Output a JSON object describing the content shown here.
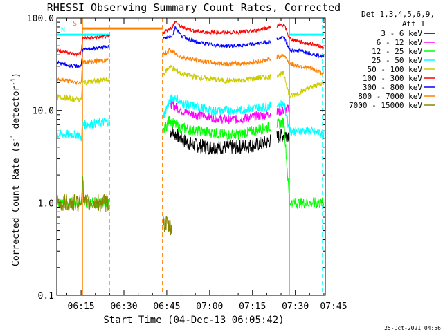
{
  "chart_data": {
    "type": "line",
    "title": "RHESSI Observing Summary Count Rates, Corrected",
    "xlabel": "Start Time (04-Dec-13 06:05:42)",
    "ylabel_main": "Corrected Count Rate (s",
    "ylabel_sup": "-1",
    "ylabel_tail": " detector",
    "ylabel_close": ")",
    "yscale": "log",
    "ylim": [
      0.1,
      100
    ],
    "xlim_minutes": [
      6.5,
      100.5
    ],
    "yticks": [
      {
        "v": 0.1,
        "label": "0.1"
      },
      {
        "v": 1,
        "label": "1.0"
      },
      {
        "v": 10,
        "label": "10.0"
      },
      {
        "v": 100,
        "label": "100.0"
      }
    ],
    "xticks": [
      {
        "m": 15,
        "label": "06:15"
      },
      {
        "m": 30,
        "label": "06:30"
      },
      {
        "m": 45,
        "label": "06:45"
      },
      {
        "m": 60,
        "label": "07:00"
      },
      {
        "m": 75,
        "label": "07:15"
      },
      {
        "m": 90,
        "label": "07:30"
      },
      {
        "m": 105,
        "label": "07:45"
      }
    ],
    "legend_header": [
      "Det 1,3,4,5,6,9,",
      "Att 1"
    ],
    "legend_position": "right",
    "footer_date": "25-Oct-2021 04:56",
    "gaps_minutes": [
      [
        25,
        43.5
      ],
      [
        81.5,
        83.5
      ]
    ],
    "flags": [
      {
        "label": "S",
        "color": "#ff7f00",
        "start": 15.5,
        "end": 43.5,
        "level": 77
      },
      {
        "label": "N",
        "color": "#00ffff",
        "start": 6.5,
        "end": 25,
        "level": 66
      },
      {
        "label": "",
        "color": "#00ffff",
        "start": 88,
        "end": 100,
        "level": 66
      }
    ],
    "vlines": [
      {
        "m": 15.5,
        "color": "#ff7f00",
        "style": "solid"
      },
      {
        "m": 43.5,
        "color": "#ff7f00",
        "style": "dash"
      },
      {
        "m": 25,
        "color": "#00ffff",
        "style": "dash"
      },
      {
        "m": 88,
        "color": "#00ffff",
        "style": "solid"
      },
      {
        "m": 99.5,
        "color": "#00ffff",
        "style": "dash"
      }
    ],
    "series": [
      {
        "name": "3 - 6 keV",
        "color": "#000000",
        "noise": 0.08,
        "points": [
          [
            6.5,
            null
          ],
          [
            46,
            6
          ],
          [
            48,
            5.5
          ],
          [
            50,
            5
          ],
          [
            52,
            4.5
          ],
          [
            55,
            4.2
          ],
          [
            60,
            4
          ],
          [
            65,
            4
          ],
          [
            70,
            4
          ],
          [
            75,
            4.2
          ],
          [
            80,
            4.5
          ],
          [
            86,
            5.5
          ],
          [
            88,
            5.5
          ]
        ]
      },
      {
        "name": "6 - 12 keV",
        "color": "#ff00ff",
        "noise": 0.05,
        "points": [
          [
            46,
            12
          ],
          [
            48,
            11
          ],
          [
            50,
            10
          ],
          [
            55,
            9
          ],
          [
            60,
            8.5
          ],
          [
            65,
            8
          ],
          [
            70,
            8
          ],
          [
            75,
            8.5
          ],
          [
            80,
            9
          ],
          [
            86,
            10
          ],
          [
            88,
            10.5
          ]
        ]
      },
      {
        "name": "12 - 25 keV",
        "color": "#00ff00",
        "noise": 0.06,
        "points": [
          [
            6.5,
            1
          ],
          [
            15,
            1
          ],
          [
            15.5,
            2
          ],
          [
            16,
            1
          ],
          [
            25,
            1
          ],
          [
            44,
            6
          ],
          [
            46,
            8
          ],
          [
            48,
            7
          ],
          [
            50,
            6.5
          ],
          [
            55,
            6
          ],
          [
            60,
            5.8
          ],
          [
            65,
            5.5
          ],
          [
            70,
            5.5
          ],
          [
            75,
            6
          ],
          [
            80,
            6.5
          ],
          [
            86,
            7.5
          ],
          [
            88,
            1
          ],
          [
            90,
            1
          ],
          [
            95,
            1
          ],
          [
            100,
            1
          ]
        ]
      },
      {
        "name": "25 - 50 keV",
        "color": "#00ffff",
        "noise": 0.05,
        "points": [
          [
            6.5,
            5.5
          ],
          [
            14,
            5.5
          ],
          [
            15,
            5
          ],
          [
            15.5,
            7
          ],
          [
            44,
            9
          ],
          [
            46,
            13
          ],
          [
            48,
            14
          ],
          [
            50,
            12
          ],
          [
            55,
            11
          ],
          [
            60,
            10
          ],
          [
            65,
            10
          ],
          [
            70,
            10
          ],
          [
            75,
            10.5
          ],
          [
            80,
            11
          ],
          [
            86,
            12
          ],
          [
            88,
            6
          ],
          [
            95,
            6
          ],
          [
            100,
            5.5
          ]
        ]
      },
      {
        "name": "50 - 100 keV",
        "color": "#cccc00",
        "noise": 0.03,
        "points": [
          [
            6.5,
            14
          ],
          [
            15,
            13
          ],
          [
            15.5,
            20
          ],
          [
            44,
            25
          ],
          [
            46,
            30
          ],
          [
            50,
            25
          ],
          [
            55,
            23
          ],
          [
            60,
            22
          ],
          [
            65,
            21
          ],
          [
            70,
            21
          ],
          [
            75,
            22
          ],
          [
            80,
            23
          ],
          [
            86,
            25
          ],
          [
            88,
            14
          ],
          [
            92,
            16
          ],
          [
            96,
            18
          ],
          [
            100,
            20
          ]
        ]
      },
      {
        "name": "100 - 300 keV",
        "color": "#ff0000",
        "noise": 0.02,
        "points": [
          [
            6.5,
            45
          ],
          [
            10,
            43
          ],
          [
            13,
            40
          ],
          [
            15,
            42
          ],
          [
            15.5,
            60
          ],
          [
            44,
            70
          ],
          [
            47,
            80
          ],
          [
            48,
            92
          ],
          [
            50,
            80
          ],
          [
            55,
            72
          ],
          [
            60,
            70
          ],
          [
            65,
            70
          ],
          [
            70,
            70
          ],
          [
            75,
            72
          ],
          [
            80,
            78
          ],
          [
            86,
            85
          ],
          [
            88,
            60
          ],
          [
            92,
            55
          ],
          [
            96,
            52
          ],
          [
            100,
            48
          ]
        ]
      },
      {
        "name": "300 - 800 keV",
        "color": "#0000ff",
        "noise": 0.02,
        "points": [
          [
            6.5,
            33
          ],
          [
            10,
            31
          ],
          [
            13,
            30
          ],
          [
            15,
            30
          ],
          [
            15.5,
            45
          ],
          [
            44,
            60
          ],
          [
            47,
            65
          ],
          [
            48,
            80
          ],
          [
            50,
            65
          ],
          [
            55,
            55
          ],
          [
            60,
            52
          ],
          [
            65,
            50
          ],
          [
            70,
            50
          ],
          [
            75,
            52
          ],
          [
            80,
            55
          ],
          [
            86,
            62
          ],
          [
            88,
            45
          ],
          [
            92,
            44
          ],
          [
            96,
            41
          ],
          [
            100,
            38
          ]
        ]
      },
      {
        "name": "800 - 7000 keV",
        "color": "#ff7f00",
        "noise": 0.025,
        "points": [
          [
            6.5,
            22
          ],
          [
            10,
            21
          ],
          [
            13,
            20
          ],
          [
            15,
            20
          ],
          [
            15.5,
            33
          ],
          [
            44,
            40
          ],
          [
            46,
            45
          ],
          [
            50,
            38
          ],
          [
            55,
            35
          ],
          [
            60,
            33
          ],
          [
            65,
            32
          ],
          [
            70,
            32
          ],
          [
            75,
            33
          ],
          [
            80,
            35
          ],
          [
            86,
            40
          ],
          [
            88,
            32
          ],
          [
            92,
            30
          ],
          [
            96,
            28
          ],
          [
            100,
            25
          ]
        ]
      },
      {
        "name": "7000 - 15000 keV",
        "color": "#888800",
        "noise": 0.1,
        "points": [
          [
            6.5,
            1
          ],
          [
            15,
            1
          ],
          [
            15.5,
            2
          ],
          [
            16,
            1
          ],
          [
            25,
            1
          ],
          [
            44,
            0.6
          ],
          [
            46,
            0.55
          ],
          [
            47,
            0.5
          ]
        ]
      }
    ]
  }
}
